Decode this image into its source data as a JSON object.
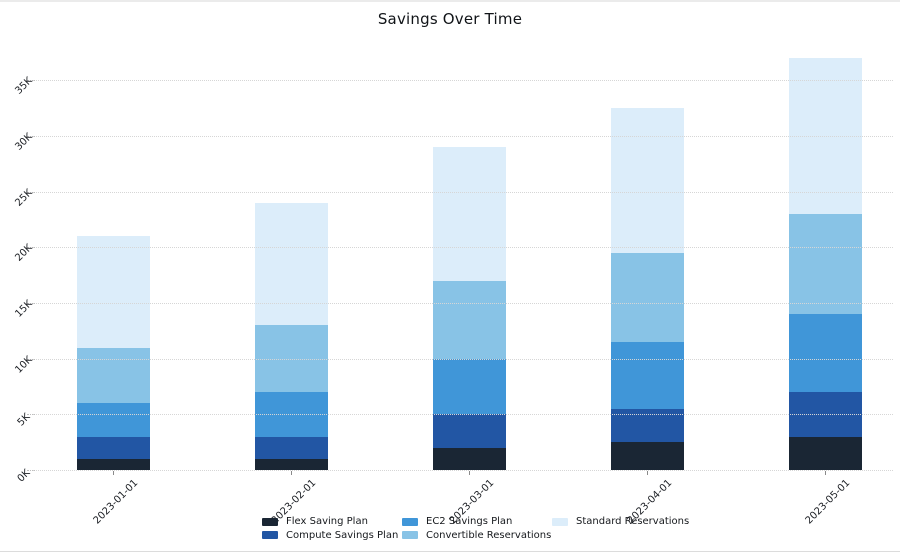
{
  "chart_data": {
    "type": "bar",
    "stacked": true,
    "title": "Savings Over Time",
    "categories": [
      "2023-01-01",
      "2023-02-01",
      "2023-03-01",
      "2023-04-01",
      "2023-05-01"
    ],
    "series": [
      {
        "name": "Flex Saving Plan",
        "color": "#1a2634",
        "values": [
          1000,
          1000,
          2000,
          2500,
          3000
        ]
      },
      {
        "name": "Compute Savings Plan",
        "color": "#2256a4",
        "values": [
          2000,
          2000,
          3000,
          3000,
          4000
        ]
      },
      {
        "name": "EC2 Savings Plan",
        "color": "#4096d8",
        "values": [
          3000,
          4000,
          5000,
          6000,
          7000
        ]
      },
      {
        "name": "Convertible Reservations",
        "color": "#88c3e6",
        "values": [
          5000,
          6000,
          7000,
          8000,
          9000
        ]
      },
      {
        "name": "Standard Reservations",
        "color": "#dcedfa",
        "values": [
          10000,
          11000,
          12000,
          13000,
          14000
        ]
      }
    ],
    "bar_totals": [
      21000,
      24000,
      29000,
      32500,
      37000
    ],
    "xlabel": "",
    "ylabel": "",
    "y_ticks": [
      {
        "label": "0K",
        "value": 0
      },
      {
        "label": "5K",
        "value": 5000
      },
      {
        "label": "10K",
        "value": 10000
      },
      {
        "label": "15K",
        "value": 15000
      },
      {
        "label": "20K",
        "value": 20000
      },
      {
        "label": "25K",
        "value": 25000
      },
      {
        "label": "30K",
        "value": 30000
      },
      {
        "label": "35K",
        "value": 35000
      }
    ],
    "ylim": [
      0,
      38400
    ],
    "grid": {
      "horizontal": true,
      "style": "dotted",
      "color": "#d6d6d6",
      "drawn_above_bars": true
    },
    "tick_label_rotation_deg": 45,
    "legend": {
      "position": "bottom-center",
      "columns": [
        [
          "Flex Saving Plan",
          "Compute Savings Plan"
        ],
        [
          "EC2 Savings Plan",
          "Convertible Reservations"
        ],
        [
          "Standard Reservations"
        ]
      ]
    }
  }
}
